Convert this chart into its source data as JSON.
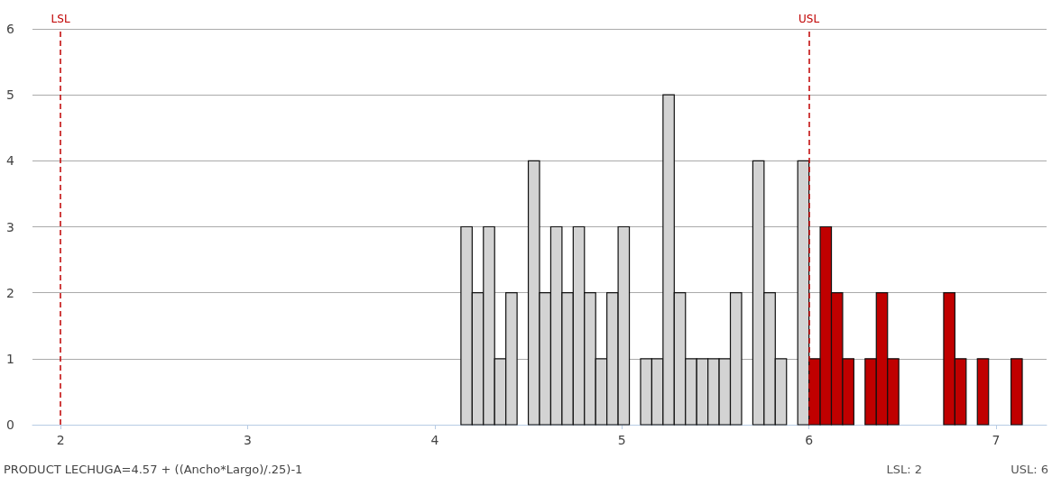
{
  "chart_data": {
    "type": "histogram",
    "bins": [
      4.14,
      4.2,
      4.26,
      4.32,
      4.38,
      4.44,
      4.5,
      4.56,
      4.62,
      4.68,
      4.74,
      4.8,
      4.86,
      4.92,
      4.98,
      5.04,
      5.1,
      5.16,
      5.22,
      5.28,
      5.34,
      5.4,
      5.46,
      5.52,
      5.58,
      5.64,
      5.7,
      5.76,
      5.82,
      5.88,
      5.94,
      6,
      6.06,
      6.12,
      6.18,
      6.24,
      6.3,
      6.36,
      6.42,
      6.48,
      6.54,
      6.6,
      6.66,
      6.72,
      6.78,
      6.84,
      6.9,
      6.96,
      7.02,
      7.08,
      7.14
    ],
    "values": [
      3,
      2,
      3,
      1,
      2,
      0,
      4,
      2,
      3,
      2,
      3,
      2,
      1,
      2,
      3,
      0,
      1,
      1,
      5,
      2,
      1,
      1,
      1,
      1,
      2,
      0,
      4,
      2,
      1,
      0,
      4,
      1,
      3,
      2,
      1,
      0,
      1,
      2,
      1,
      0,
      0,
      0,
      0,
      2,
      1,
      0,
      1,
      0,
      0,
      1
    ],
    "colors": [
      "#d3d3d3",
      "#d3d3d3",
      "#d3d3d3",
      "#d3d3d3",
      "#d3d3d3",
      "#d3d3d3",
      "#d3d3d3",
      "#d3d3d3",
      "#d3d3d3",
      "#d3d3d3",
      "#d3d3d3",
      "#d3d3d3",
      "#d3d3d3",
      "#d3d3d3",
      "#d3d3d3",
      "#d3d3d3",
      "#d3d3d3",
      "#d3d3d3",
      "#d3d3d3",
      "#d3d3d3",
      "#d3d3d3",
      "#d3d3d3",
      "#d3d3d3",
      "#d3d3d3",
      "#d3d3d3",
      "#d3d3d3",
      "#d3d3d3",
      "#d3d3d3",
      "#d3d3d3",
      "#d3d3d3",
      "#d3d3d3",
      "#c00000",
      "#c00000",
      "#c00000",
      "#c00000",
      "#c00000",
      "#c00000",
      "#c00000",
      "#c00000",
      "#c00000",
      "#c00000",
      "#c00000",
      "#c00000",
      "#c00000",
      "#c00000",
      "#c00000",
      "#c00000",
      "#c00000",
      "#c00000",
      "#c00000"
    ],
    "xlim": [
      1.85,
      7.27
    ],
    "xticks": [
      2,
      3,
      4,
      5,
      6,
      7
    ],
    "ylim": [
      0,
      6
    ],
    "yticks": [
      0,
      1,
      2,
      3,
      4,
      5,
      6
    ],
    "grid": "y",
    "ref_lines": [
      {
        "axis": "x",
        "value": 2,
        "label": "LSL",
        "color": "#c00000",
        "line_style": "dashed"
      },
      {
        "axis": "x",
        "value": 6,
        "label": "USL",
        "color": "#c00000",
        "line_style": "dashed"
      }
    ],
    "annotations": [
      "PRODUCT LECHUGA=4.57 + ((Ancho*Largo)/.25)-1",
      "LSL: 2",
      "USL: 6"
    ]
  }
}
